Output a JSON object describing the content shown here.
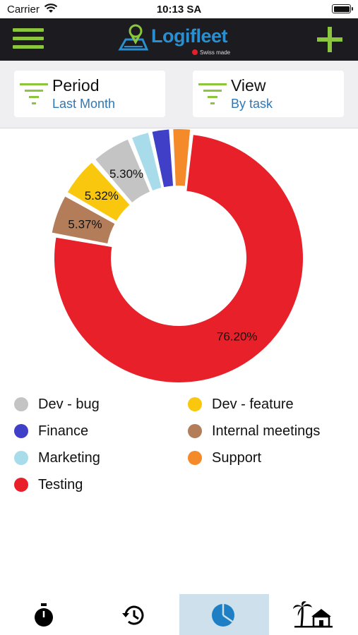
{
  "status_bar": {
    "carrier": "Carrier",
    "time": "10:13 SA"
  },
  "header": {
    "logo_text": "Logifleet",
    "logo_sub": "Swiss made"
  },
  "filters": {
    "period": {
      "title": "Period",
      "value": "Last Month"
    },
    "view": {
      "title": "View",
      "value": "By task"
    }
  },
  "colors": {
    "accent_green": "#8cc63f",
    "header_bg": "#1c1b20",
    "link_blue": "#2d78b8",
    "tab_active_bg": "#cde0ec"
  },
  "chart_data": {
    "type": "pie",
    "style": "donut",
    "slices": [
      {
        "name": "Testing",
        "value": 76.2,
        "label": "76.20%",
        "color": "#e8202a"
      },
      {
        "name": "Internal meetings",
        "value": 5.37,
        "label": "5.37%",
        "color": "#b47d5a"
      },
      {
        "name": "Dev - feature",
        "value": 5.32,
        "label": "5.32%",
        "color": "#f9c80e"
      },
      {
        "name": "Dev - bug",
        "value": 5.3,
        "label": "5.30%",
        "color": "#c4c4c4"
      },
      {
        "name": "Marketing",
        "value": 2.6,
        "label": "",
        "color": "#a8dcea"
      },
      {
        "name": "Finance",
        "value": 2.6,
        "label": "",
        "color": "#3f3fc8"
      },
      {
        "name": "Support",
        "value": 2.6,
        "label": "",
        "color": "#f58a2a"
      }
    ]
  },
  "legend": [
    {
      "label": "Dev - bug",
      "color": "#c4c4c4"
    },
    {
      "label": "Dev - feature",
      "color": "#f9c80e"
    },
    {
      "label": "Finance",
      "color": "#3f3fc8"
    },
    {
      "label": "Internal meetings",
      "color": "#b47d5a"
    },
    {
      "label": "Marketing",
      "color": "#a8dcea"
    },
    {
      "label": "Support",
      "color": "#f58a2a"
    },
    {
      "label": "Testing",
      "color": "#e8202a"
    }
  ],
  "tabs": [
    {
      "icon": "stopwatch-icon",
      "active": false
    },
    {
      "icon": "history-icon",
      "active": false
    },
    {
      "icon": "pie-chart-icon",
      "active": true
    },
    {
      "icon": "vacation-icon",
      "active": false
    }
  ]
}
